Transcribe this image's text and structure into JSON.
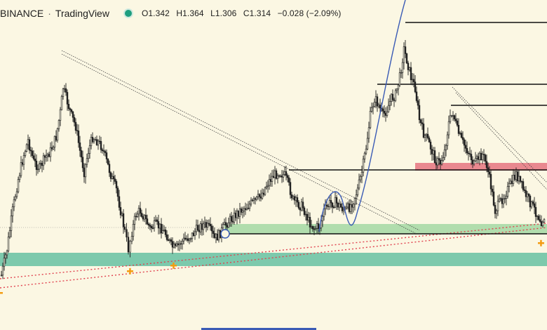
{
  "header": {
    "symbol": "BINANCE",
    "separator": "·",
    "brand": "TradingView",
    "ohlc": {
      "open": "O1.342",
      "high": "H1.364",
      "low": "L1.306",
      "close": "C1.314",
      "change": "−0.028 (−2.09%)"
    }
  },
  "colors": {
    "background": "#fbf7e3",
    "candle": "#1e1e1e",
    "support_zone": "#6fc3a5",
    "mid_zone": "#a8d9a6",
    "resistance_zone": "#e8828a",
    "trend_dotted": "#e0424f",
    "wave_line": "#3a5bb5",
    "marker": "#f39c12"
  },
  "chart_data": {
    "type": "candlestick",
    "price_scale": "linear",
    "grid": false,
    "legend": "none",
    "annotations": {
      "support_zone": {
        "label": "",
        "kind": "horizontal-zone"
      },
      "mid_zone": {
        "label": "",
        "kind": "horizontal-zone"
      },
      "resistance_zone": {
        "label": "",
        "kind": "horizontal-zone"
      },
      "markers": [
        "+",
        "+",
        "+",
        "+"
      ]
    }
  }
}
